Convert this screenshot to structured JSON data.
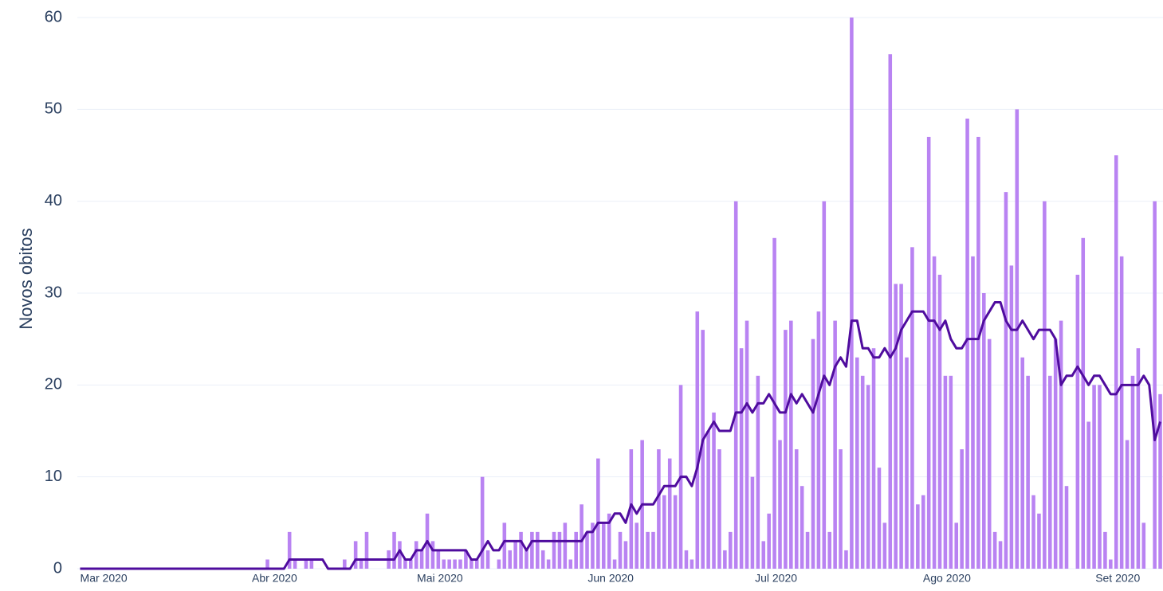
{
  "chart_data": {
    "type": "bar",
    "y_label": "Novos obitos",
    "categories": [
      null,
      null,
      null,
      null,
      "Mar 2020",
      null,
      null,
      null,
      null,
      null,
      null,
      null,
      null,
      null,
      null,
      null,
      null,
      null,
      null,
      null,
      null,
      null,
      null,
      null,
      null,
      null,
      null,
      null,
      null,
      null,
      null,
      null,
      null,
      null,
      null,
      "Abr 2020",
      null,
      null,
      null,
      null,
      null,
      null,
      null,
      null,
      null,
      null,
      null,
      null,
      null,
      null,
      null,
      null,
      null,
      null,
      null,
      null,
      null,
      null,
      null,
      null,
      null,
      null,
      null,
      null,
      null,
      "Mai 2020",
      null,
      null,
      null,
      null,
      null,
      null,
      null,
      null,
      null,
      null,
      null,
      null,
      null,
      null,
      null,
      null,
      null,
      null,
      null,
      null,
      null,
      null,
      null,
      null,
      null,
      null,
      null,
      null,
      null,
      null,
      "Jun 2020",
      null,
      null,
      null,
      null,
      null,
      null,
      null,
      null,
      null,
      null,
      null,
      null,
      null,
      null,
      null,
      null,
      null,
      null,
      null,
      null,
      null,
      null,
      null,
      null,
      null,
      null,
      null,
      null,
      null,
      "Jul 2020",
      null,
      null,
      null,
      null,
      null,
      null,
      null,
      null,
      null,
      null,
      null,
      null,
      null,
      null,
      null,
      null,
      null,
      null,
      null,
      null,
      null,
      null,
      null,
      null,
      null,
      null,
      null,
      null,
      null,
      null,
      "Ago 2020",
      null,
      null,
      null,
      null,
      null,
      null,
      null,
      null,
      null,
      null,
      null,
      null,
      null,
      null,
      null,
      null,
      null,
      null,
      null,
      null,
      null,
      null,
      null,
      null,
      null,
      null,
      null,
      null,
      null,
      null,
      "Set 2020",
      null,
      null,
      null,
      null,
      null,
      null,
      null,
      null
    ],
    "series": [
      {
        "type": "bar",
        "color": "#b983f2",
        "values": [
          0,
          0,
          0,
          0,
          0,
          0,
          0,
          0,
          0,
          0,
          0,
          0,
          0,
          0,
          0,
          0,
          0,
          0,
          0,
          0,
          0,
          0,
          0,
          0,
          0,
          0,
          0,
          0,
          0,
          0,
          0,
          0,
          0,
          0,
          1,
          0,
          0,
          0,
          4,
          1,
          0,
          1,
          1,
          0,
          0,
          0,
          0,
          0,
          1,
          0,
          3,
          1,
          4,
          0,
          0,
          0,
          2,
          4,
          3,
          1,
          1,
          3,
          2,
          6,
          3,
          2,
          1,
          1,
          1,
          1,
          2,
          1,
          1,
          10,
          2,
          0,
          1,
          5,
          2,
          3,
          4,
          2,
          4,
          4,
          2,
          1,
          4,
          4,
          5,
          1,
          4,
          7,
          4,
          5,
          12,
          5,
          6,
          1,
          4,
          3,
          13,
          5,
          14,
          4,
          4,
          13,
          8,
          12,
          8,
          20,
          2,
          1,
          28,
          26,
          15,
          17,
          13,
          2,
          4,
          40,
          24,
          27,
          10,
          21,
          3,
          6,
          36,
          14,
          26,
          27,
          13,
          9,
          4,
          25,
          28,
          40,
          4,
          27,
          13,
          2,
          60,
          23,
          21,
          20,
          24,
          11,
          5,
          56,
          31,
          31,
          23,
          35,
          7,
          8,
          47,
          34,
          32,
          21,
          21,
          5,
          13,
          49,
          34,
          47,
          30,
          25,
          4,
          3,
          41,
          33,
          50,
          23,
          21,
          8,
          6,
          40,
          21,
          25,
          27,
          9,
          0,
          32,
          36,
          16,
          20,
          20,
          4,
          1,
          45,
          34,
          14,
          21,
          24,
          5,
          0,
          40,
          19
        ]
      },
      {
        "type": "line",
        "color": "#4f0c9e",
        "values": [
          0,
          0,
          0,
          0,
          0,
          0,
          0,
          0,
          0,
          0,
          0,
          0,
          0,
          0,
          0,
          0,
          0,
          0,
          0,
          0,
          0,
          0,
          0,
          0,
          0,
          0,
          0,
          0,
          0,
          0,
          0,
          0,
          0,
          0,
          0,
          0,
          0,
          0,
          1,
          1,
          1,
          1,
          1,
          1,
          1,
          0,
          0,
          0,
          0,
          0,
          1,
          1,
          1,
          1,
          1,
          1,
          1,
          1,
          2,
          1,
          1,
          2,
          2,
          3,
          2,
          2,
          2,
          2,
          2,
          2,
          2,
          1,
          1,
          2,
          3,
          2,
          2,
          3,
          3,
          3,
          3,
          2,
          3,
          3,
          3,
          3,
          3,
          3,
          3,
          3,
          3,
          3,
          4,
          4,
          5,
          5,
          5,
          6,
          6,
          5,
          7,
          6,
          7,
          7,
          7,
          8,
          9,
          9,
          9,
          10,
          10,
          9,
          11,
          14,
          15,
          16,
          15,
          15,
          15,
          17,
          17,
          18,
          17,
          18,
          18,
          19,
          18,
          17,
          17,
          19,
          18,
          19,
          18,
          17,
          19,
          21,
          20,
          22,
          23,
          22,
          27,
          27,
          24,
          24,
          23,
          23,
          24,
          23,
          24,
          26,
          27,
          28,
          28,
          28,
          27,
          27,
          26,
          27,
          25,
          24,
          24,
          25,
          25,
          25,
          27,
          28,
          29,
          29,
          27,
          26,
          26,
          27,
          26,
          25,
          26,
          26,
          26,
          25,
          20,
          21,
          21,
          22,
          21,
          20,
          21,
          21,
          20,
          19,
          19,
          20,
          20,
          20,
          20,
          21,
          20,
          14,
          16
        ]
      }
    ],
    "ylim": [
      0,
      60
    ],
    "yticks": [
      0,
      10,
      20,
      30,
      40,
      50,
      60
    ],
    "grid": true
  }
}
